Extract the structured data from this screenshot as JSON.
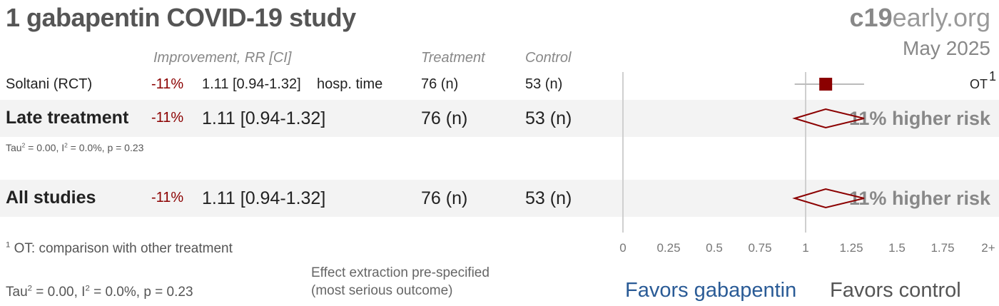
{
  "header": {
    "title": "1 gabapentin COVID-19 study",
    "brand_bold": "c19",
    "brand_rest": "early.org",
    "date": "May 2025"
  },
  "columns": {
    "improvement": "Improvement, RR [CI]",
    "treatment": "Treatment",
    "control": "Control"
  },
  "study": {
    "name": "Soltani (RCT)",
    "improvement": "-11%",
    "rr_ci": "1.11 [0.94-1.32]",
    "outcome": "hosp. time",
    "treatment": "76 (n)",
    "control": "53 (n)",
    "tag": "OT",
    "tag_sup": "1"
  },
  "late": {
    "label": "Late treatment",
    "improvement": "-11%",
    "rr_ci": "1.11 [0.94-1.32]",
    "treatment": "76 (n)",
    "control": "53 (n)",
    "stats_a": "Tau",
    "stats_b": " = 0.00, I",
    "stats_c": " = 0.0%, p = 0.23",
    "sup": "2",
    "summary": "11% higher risk"
  },
  "all": {
    "label": "All studies",
    "improvement": "-11%",
    "rr_ci": "1.11 [0.94-1.32]",
    "treatment": "76 (n)",
    "control": "53 (n)",
    "summary": "11% higher risk"
  },
  "footer": {
    "footnote_sup": "1",
    "footnote": " OT: comparison with other treatment",
    "stats_a": "Tau",
    "stats_b": " = 0.00, I",
    "stats_c": " = 0.0%, p = 0.23",
    "sup": "2",
    "note1": "Effect extraction pre-specified",
    "note2": "(most serious outcome)",
    "favors_left": "Favors gabapentin",
    "favors_right": "Favors control"
  },
  "colors": {
    "marker": "#8b0000",
    "favors_left": "#2a5b96",
    "band": "#f3f3f3"
  },
  "chart_data": {
    "type": "forest",
    "xlim": [
      0,
      2
    ],
    "ticks": [
      "0",
      "0.25",
      "0.5",
      "0.75",
      "1",
      "1.25",
      "1.5",
      "1.75",
      "2+"
    ],
    "tick_values": [
      0,
      0.25,
      0.5,
      0.75,
      1,
      1.25,
      1.5,
      1.75,
      2
    ],
    "null_value": 1,
    "studies": [
      {
        "name": "Soltani (RCT)",
        "rr": 1.11,
        "lo": 0.94,
        "hi": 1.32
      }
    ],
    "pooled": [
      {
        "name": "Late treatment",
        "rr": 1.11,
        "lo": 0.94,
        "hi": 1.32
      },
      {
        "name": "All studies",
        "rr": 1.11,
        "lo": 0.94,
        "hi": 1.32
      }
    ]
  }
}
